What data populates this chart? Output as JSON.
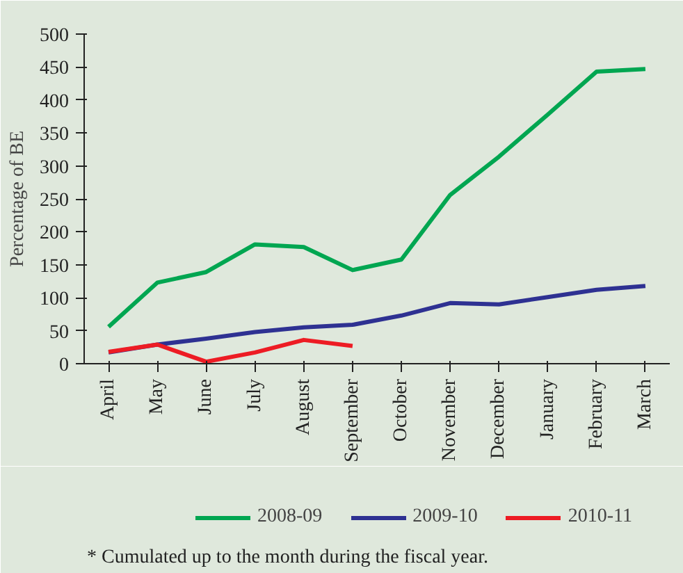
{
  "chart_data": {
    "type": "line",
    "ylabel": "Percentage of BE",
    "categories": [
      "April",
      "May",
      "June",
      "July",
      "August",
      "September",
      "October",
      "November",
      "December",
      "January",
      "February",
      "March"
    ],
    "series": [
      {
        "name": "2008-09",
        "color": "#00a651",
        "values": [
          56,
          123,
          139,
          181,
          177,
          142,
          158,
          256,
          314,
          378,
          443,
          447
        ]
      },
      {
        "name": "2009-10",
        "color": "#2e3192",
        "values": [
          17,
          29,
          38,
          48,
          55,
          59,
          73,
          92,
          90,
          101,
          112,
          118
        ]
      },
      {
        "name": "2010-11",
        "color": "#ed1c24",
        "values": [
          18,
          29,
          3,
          17,
          36,
          27,
          null,
          null,
          null,
          null,
          null,
          null
        ]
      }
    ],
    "ylim": [
      0,
      500
    ],
    "yticks": [
      0,
      50,
      100,
      150,
      200,
      250,
      300,
      350,
      400,
      450,
      500
    ],
    "grid": false,
    "legend": "bottom",
    "marker": "none",
    "line_style": "solid",
    "annotations": [
      "* Cumulated up to the month during the fiscal year."
    ]
  }
}
